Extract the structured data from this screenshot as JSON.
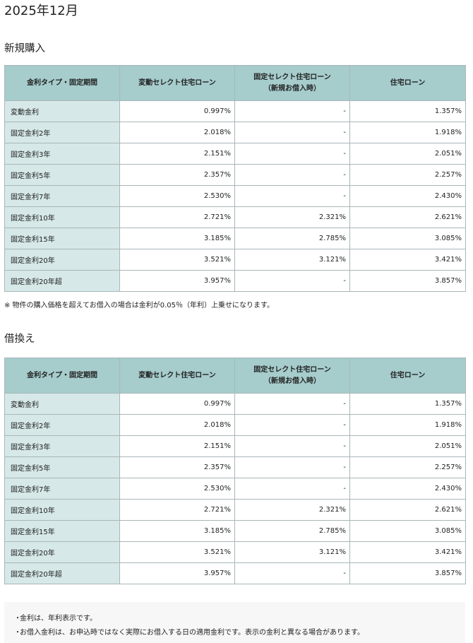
{
  "page_title": "2025年12月",
  "sections": [
    {
      "title": "新規購入",
      "headers": {
        "col1": "金利タイプ・固定期間",
        "col2": "変動セレクト住宅ローン",
        "col3_line1": "固定セレクト住宅ローン",
        "col3_line2": "（新規お借入時）",
        "col4": "住宅ローン"
      },
      "rows": [
        {
          "label": "変動金利",
          "v1": "0.997%",
          "v2": "-",
          "v3": "1.357%"
        },
        {
          "label": "固定金利2年",
          "v1": "2.018%",
          "v2": "-",
          "v3": "1.918%"
        },
        {
          "label": "固定金利3年",
          "v1": "2.151%",
          "v2": "-",
          "v3": "2.051%"
        },
        {
          "label": "固定金利5年",
          "v1": "2.357%",
          "v2": "-",
          "v3": "2.257%"
        },
        {
          "label": "固定金利7年",
          "v1": "2.530%",
          "v2": "-",
          "v3": "2.430%"
        },
        {
          "label": "固定金利10年",
          "v1": "2.721%",
          "v2": "2.321%",
          "v3": "2.621%"
        },
        {
          "label": "固定金利15年",
          "v1": "3.185%",
          "v2": "2.785%",
          "v3": "3.085%"
        },
        {
          "label": "固定金利20年",
          "v1": "3.521%",
          "v2": "3.121%",
          "v3": "3.421%"
        },
        {
          "label": "固定金利20年超",
          "v1": "3.957%",
          "v2": "-",
          "v3": "3.857%"
        }
      ],
      "note": "※ 物件の購入価格を超えてお借入の場合は金利が0.05％（年利）上乗せになります。"
    },
    {
      "title": "借換え",
      "headers": {
        "col1": "金利タイプ・固定期間",
        "col2": "変動セレクト住宅ローン",
        "col3_line1": "固定セレクト住宅ローン",
        "col3_line2": "（新規お借入時）",
        "col4": "住宅ローン"
      },
      "rows": [
        {
          "label": "変動金利",
          "v1": "0.997%",
          "v2": "-",
          "v3": "1.357%"
        },
        {
          "label": "固定金利2年",
          "v1": "2.018%",
          "v2": "-",
          "v3": "1.918%"
        },
        {
          "label": "固定金利3年",
          "v1": "2.151%",
          "v2": "-",
          "v3": "2.051%"
        },
        {
          "label": "固定金利5年",
          "v1": "2.357%",
          "v2": "-",
          "v3": "2.257%"
        },
        {
          "label": "固定金利7年",
          "v1": "2.530%",
          "v2": "-",
          "v3": "2.430%"
        },
        {
          "label": "固定金利10年",
          "v1": "2.721%",
          "v2": "2.321%",
          "v3": "2.621%"
        },
        {
          "label": "固定金利15年",
          "v1": "3.185%",
          "v2": "2.785%",
          "v3": "3.085%"
        },
        {
          "label": "固定金利20年",
          "v1": "3.521%",
          "v2": "3.121%",
          "v3": "3.421%"
        },
        {
          "label": "固定金利20年超",
          "v1": "3.957%",
          "v2": "-",
          "v3": "3.857%"
        }
      ]
    }
  ],
  "footer_notes": {
    "bullet": "・",
    "items": [
      "金利は、年利表示です。",
      "お借入金利は、お申込時ではなく実際にお借入する日の適用金利です。表示の金利と異なる場合があります。"
    ]
  }
}
